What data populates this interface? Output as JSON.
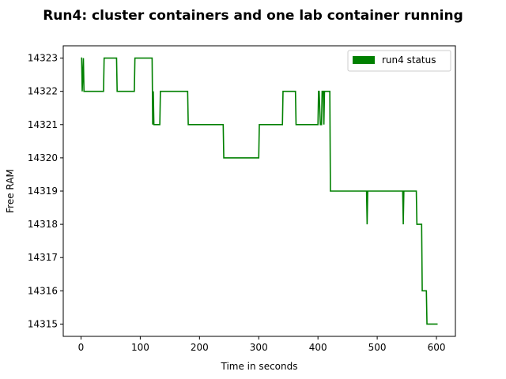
{
  "chart_data": {
    "type": "line",
    "title": "Run4: cluster containers and one lab container running",
    "xlabel": "Time  in seconds",
    "ylabel": "Free RAM",
    "xlim": [
      -30,
      632
    ],
    "ylim": [
      14314.63,
      14323.37
    ],
    "xticks": [
      0,
      100,
      200,
      300,
      400,
      500,
      600
    ],
    "yticks": [
      14315,
      14316,
      14317,
      14318,
      14319,
      14320,
      14321,
      14322,
      14323
    ],
    "grid": false,
    "legend_position": "top-right",
    "series": [
      {
        "name": "run4 status",
        "color": "#008000",
        "points": [
          [
            0,
            14323
          ],
          [
            1,
            14323
          ],
          [
            2,
            14322
          ],
          [
            4,
            14323
          ],
          [
            5,
            14322
          ],
          [
            38,
            14322
          ],
          [
            39,
            14323
          ],
          [
            60,
            14323
          ],
          [
            61,
            14322
          ],
          [
            90,
            14322
          ],
          [
            91,
            14323
          ],
          [
            120,
            14323
          ],
          [
            121,
            14321
          ],
          [
            122,
            14322
          ],
          [
            123,
            14321
          ],
          [
            133,
            14321
          ],
          [
            134,
            14322
          ],
          [
            180,
            14322
          ],
          [
            181,
            14321
          ],
          [
            240,
            14321
          ],
          [
            241,
            14320
          ],
          [
            300,
            14320
          ],
          [
            301,
            14321
          ],
          [
            340,
            14321
          ],
          [
            341,
            14322
          ],
          [
            362,
            14322
          ],
          [
            363,
            14321
          ],
          [
            400,
            14321
          ],
          [
            401,
            14322
          ],
          [
            402,
            14322
          ],
          [
            404,
            14321
          ],
          [
            406,
            14321
          ],
          [
            407,
            14322
          ],
          [
            409,
            14322
          ],
          [
            410,
            14321
          ],
          [
            411,
            14322
          ],
          [
            420,
            14322
          ],
          [
            421,
            14319
          ],
          [
            482,
            14319
          ],
          [
            483,
            14318
          ],
          [
            484,
            14319
          ],
          [
            543,
            14319
          ],
          [
            544,
            14318
          ],
          [
            545,
            14319
          ],
          [
            566,
            14319
          ],
          [
            567,
            14318
          ],
          [
            575,
            14318
          ],
          [
            576,
            14316
          ],
          [
            583,
            14316
          ],
          [
            584,
            14315
          ],
          [
            602,
            14315
          ]
        ]
      }
    ]
  }
}
